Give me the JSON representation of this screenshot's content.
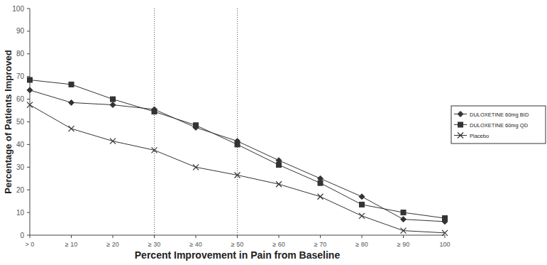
{
  "chart_data": {
    "type": "line",
    "x_label": "Percent Improvement in Pain from Baseline",
    "y_label": "Percentage of Patients Improved",
    "x": [
      0,
      10,
      20,
      30,
      40,
      50,
      60,
      70,
      80,
      90,
      100
    ],
    "xlim": [
      0,
      100
    ],
    "xticks": [
      {
        "value": 0,
        "label": "> 0"
      },
      {
        "value": 10,
        "label": "≥ 10"
      },
      {
        "value": 20,
        "label": "≥ 20"
      },
      {
        "value": 30,
        "label": "≥ 30"
      },
      {
        "value": 40,
        "label": "≥ 40"
      },
      {
        "value": 50,
        "label": "≥ 50"
      },
      {
        "value": 60,
        "label": "≥ 60"
      },
      {
        "value": 70,
        "label": "≥ 70"
      },
      {
        "value": 80,
        "label": "≥ 80"
      },
      {
        "value": 90,
        "label": "≥ 90"
      },
      {
        "value": 100,
        "label": "100"
      }
    ],
    "ylim": [
      0,
      100
    ],
    "yticks": [
      0,
      10,
      20,
      30,
      40,
      50,
      60,
      70,
      80,
      90,
      100
    ],
    "reference_lines": [
      30,
      50
    ],
    "grid": false,
    "legend": "right",
    "series": [
      {
        "name": "DULOXETINE 60mg BID",
        "color": "#333333",
        "marker": "diamond",
        "line_style": "solid",
        "values": [
          64,
          58.5,
          57.5,
          55.5,
          47.5,
          41.5,
          33,
          25,
          17,
          7,
          6
        ]
      },
      {
        "name": "DULOXETINE 60mg QD",
        "color": "#333333",
        "marker": "square",
        "line_style": "solid",
        "values": [
          68.5,
          66.5,
          60,
          54.5,
          48.5,
          40,
          31,
          23,
          13.5,
          10,
          7.5
        ]
      },
      {
        "name": "Placebo",
        "color": "#333333",
        "marker": "x",
        "line_style": "solid",
        "values": [
          57.5,
          47,
          41.5,
          37.5,
          30,
          26.5,
          22.5,
          17,
          8.5,
          2,
          1
        ]
      }
    ]
  }
}
